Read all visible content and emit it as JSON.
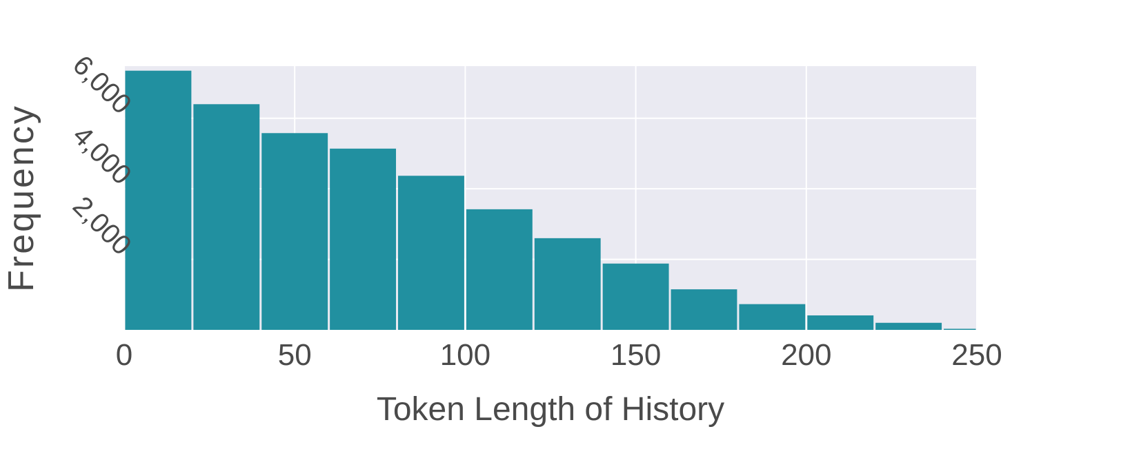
{
  "chart_data": {
    "type": "bar",
    "title": "",
    "xlabel": "Token Length of History",
    "ylabel": "Frequency",
    "bin_width": 20,
    "bins": [
      {
        "start": 0,
        "end": 20,
        "value": 7350
      },
      {
        "start": 20,
        "end": 40,
        "value": 6400
      },
      {
        "start": 40,
        "end": 60,
        "value": 5580
      },
      {
        "start": 60,
        "end": 80,
        "value": 5140
      },
      {
        "start": 80,
        "end": 100,
        "value": 4370
      },
      {
        "start": 100,
        "end": 120,
        "value": 3420
      },
      {
        "start": 120,
        "end": 140,
        "value": 2600
      },
      {
        "start": 140,
        "end": 160,
        "value": 1880
      },
      {
        "start": 160,
        "end": 180,
        "value": 1150
      },
      {
        "start": 180,
        "end": 200,
        "value": 730
      },
      {
        "start": 200,
        "end": 220,
        "value": 410
      },
      {
        "start": 220,
        "end": 240,
        "value": 200
      },
      {
        "start": 240,
        "end": 250,
        "value": 30
      }
    ],
    "xlim": [
      0,
      250
    ],
    "ylim": [
      0,
      7480
    ],
    "x_ticks": [
      0,
      50,
      100,
      150,
      200,
      250
    ],
    "x_tick_labels": [
      "0",
      "50",
      "100",
      "150",
      "200",
      "250"
    ],
    "y_ticks": [
      2000,
      4000,
      6000
    ],
    "y_tick_labels": [
      "2,000",
      "4,000",
      "6,000"
    ],
    "grid": true,
    "legend": "none",
    "colors": {
      "bar": "#2190a0",
      "plot_background": "#eaeaf2",
      "grid": "#ffffff",
      "text": "#4a4a4a"
    }
  }
}
